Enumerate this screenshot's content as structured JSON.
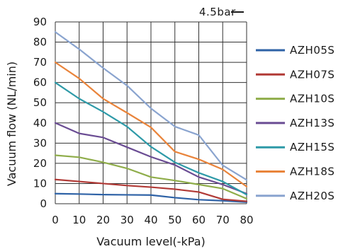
{
  "chart_data": {
    "type": "line",
    "title": "",
    "xlabel": "Vacuum level(-kPa)",
    "ylabel": "Vacuum flow (NL/min)",
    "annotation": "4.5bar",
    "x": [
      0,
      10,
      20,
      30,
      40,
      50,
      60,
      70,
      80
    ],
    "xlim": [
      0,
      80
    ],
    "ylim": [
      0,
      90
    ],
    "xticks": [
      0,
      10,
      20,
      30,
      40,
      50,
      60,
      70,
      80
    ],
    "yticks": [
      0,
      10,
      20,
      30,
      40,
      50,
      60,
      70,
      80,
      90
    ],
    "grid": true,
    "legend_position": "right",
    "series": [
      {
        "name": "AZH05S",
        "color": "#2e62a6",
        "values": [
          5,
          4.8,
          4.5,
          4.4,
          4.3,
          3,
          2,
          1.5,
          0.8
        ]
      },
      {
        "name": "AZH07S",
        "color": "#b13a36",
        "values": [
          12,
          11,
          10,
          9,
          8.2,
          7.2,
          5.8,
          2.2,
          1.2
        ]
      },
      {
        "name": "AZH10S",
        "color": "#8fad4a",
        "values": [
          24,
          23,
          20.5,
          17.5,
          13.2,
          11.5,
          9.5,
          7.5,
          2.5
        ]
      },
      {
        "name": "AZH13S",
        "color": "#6a4c93",
        "values": [
          40,
          34.8,
          32.8,
          28,
          23.2,
          19.2,
          13.2,
          9.5,
          5
        ]
      },
      {
        "name": "AZH15S",
        "color": "#2e9aa8",
        "values": [
          60,
          52,
          45.5,
          38.2,
          28.2,
          20.5,
          15.3,
          11,
          4.5
        ]
      },
      {
        "name": "AZH18S",
        "color": "#e9843b",
        "values": [
          70,
          62,
          52,
          45,
          37.8,
          25.8,
          22,
          17,
          8.5
        ]
      },
      {
        "name": "AZH20S",
        "color": "#8aa4cf",
        "values": [
          85,
          76.5,
          67.2,
          58.5,
          47.2,
          38.2,
          34,
          19,
          11.8
        ]
      }
    ]
  }
}
